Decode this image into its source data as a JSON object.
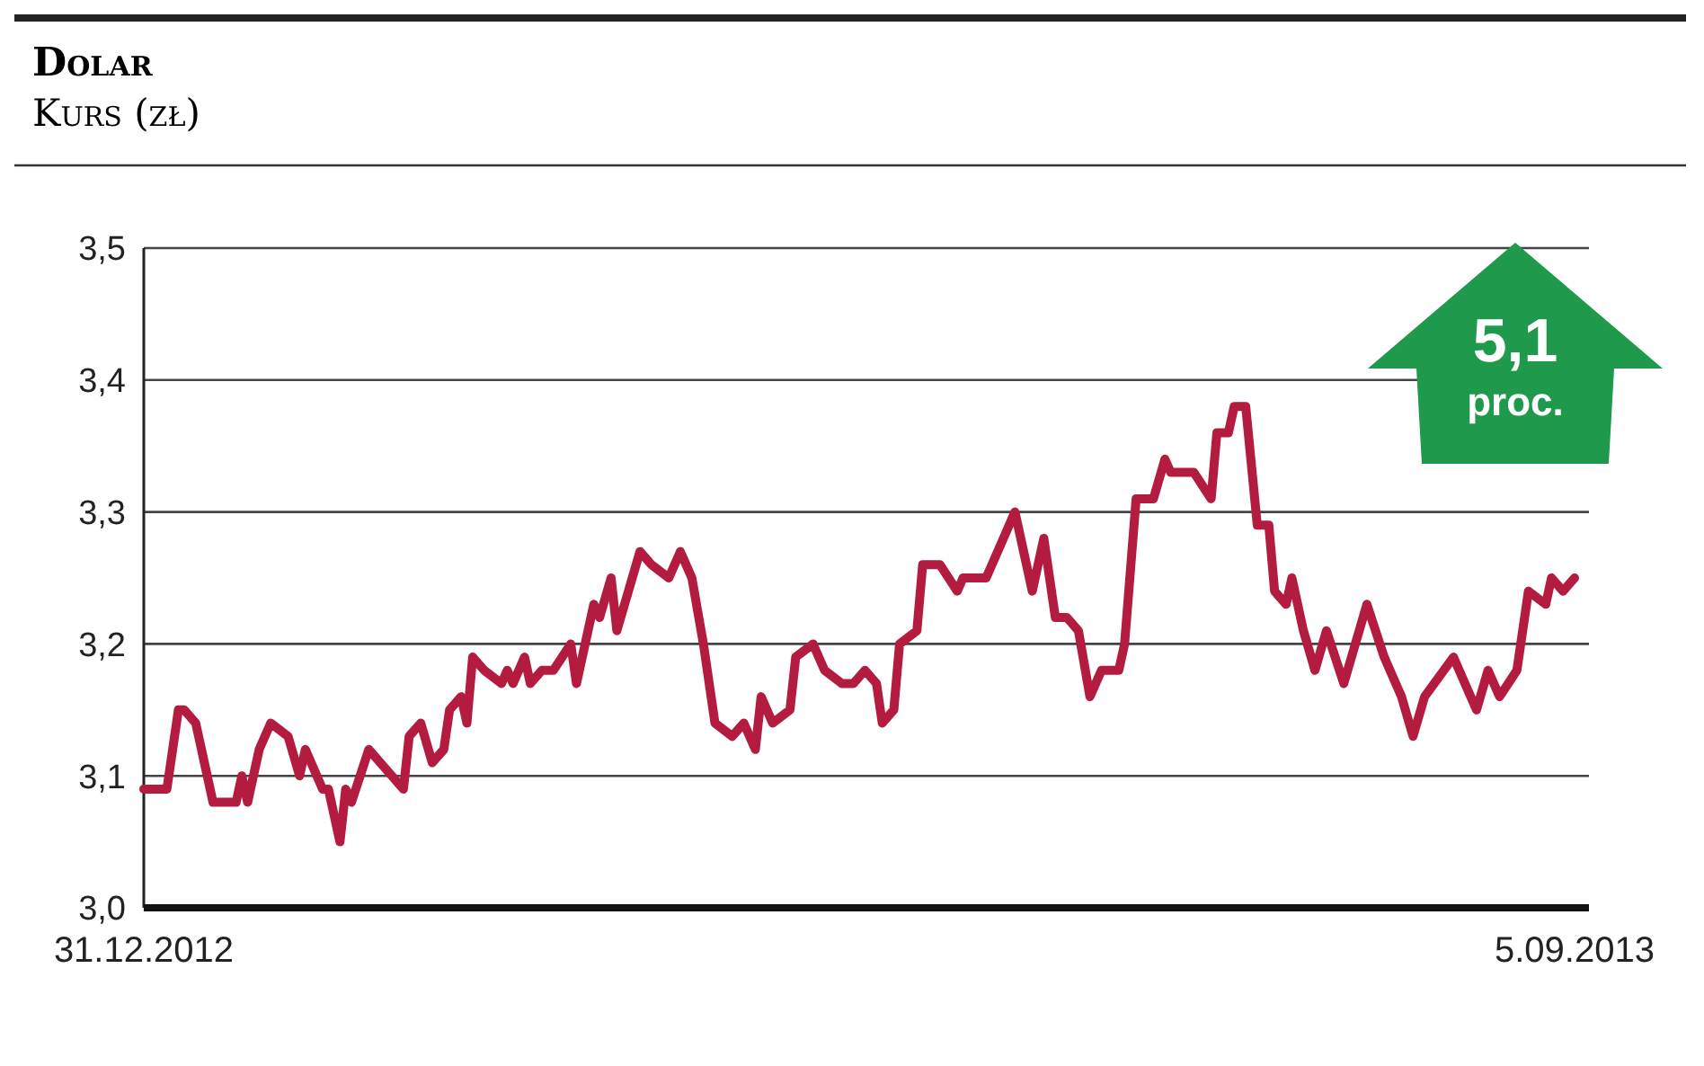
{
  "chart_data": {
    "type": "line",
    "title": "Dolar",
    "subtitle": "Kurs (zł)",
    "annotations": [
      "5,1 proc."
    ],
    "xlim": [
      "2012-12-31",
      "2013-09-05"
    ],
    "xticks": [
      {
        "value": "2012-12-31",
        "label": "31.12.2012"
      },
      {
        "value": "2013-09-05",
        "label": "5.09.2013"
      }
    ],
    "ylim": [
      3.0,
      3.5
    ],
    "yticks": [
      {
        "value": 3.0,
        "label": "3,0"
      },
      {
        "value": 3.1,
        "label": "3,1"
      },
      {
        "value": 3.2,
        "label": "3,2"
      },
      {
        "value": 3.3,
        "label": "3,3"
      },
      {
        "value": 3.4,
        "label": "3,4"
      },
      {
        "value": 3.5,
        "label": "3,5"
      }
    ],
    "grid": "y",
    "line_style": "solid",
    "series": [
      {
        "color": "#b31b3f",
        "x": [
          "2012-12-31",
          "2013-01-02",
          "2013-01-04",
          "2013-01-06",
          "2013-01-07",
          "2013-01-09",
          "2013-01-12",
          "2013-01-13",
          "2013-01-16",
          "2013-01-17",
          "2013-01-18",
          "2013-01-20",
          "2013-01-22",
          "2013-01-25",
          "2013-01-27",
          "2013-01-28",
          "2013-01-31",
          "2013-02-01",
          "2013-02-03",
          "2013-02-04",
          "2013-02-05",
          "2013-02-08",
          "2013-02-12",
          "2013-02-14",
          "2013-02-15",
          "2013-02-17",
          "2013-02-19",
          "2013-02-21",
          "2013-02-22",
          "2013-02-24",
          "2013-02-25",
          "2013-02-26",
          "2013-02-28",
          "2013-03-03",
          "2013-03-04",
          "2013-03-05",
          "2013-03-07",
          "2013-03-08",
          "2013-03-10",
          "2013-03-12",
          "2013-03-15",
          "2013-03-16",
          "2013-03-19",
          "2013-03-20",
          "2013-03-22",
          "2013-03-23",
          "2013-03-27",
          "2013-03-29",
          "2013-04-01",
          "2013-04-03",
          "2013-04-05",
          "2013-04-07",
          "2013-04-09",
          "2013-04-12",
          "2013-04-14",
          "2013-04-16",
          "2013-04-17",
          "2013-04-19",
          "2013-04-22",
          "2013-04-23",
          "2013-04-26",
          "2013-04-28",
          "2013-05-01",
          "2013-05-03",
          "2013-05-05",
          "2013-05-07",
          "2013-05-08",
          "2013-05-10",
          "2013-05-11",
          "2013-05-14",
          "2013-05-15",
          "2013-05-18",
          "2013-05-21",
          "2013-05-22",
          "2013-05-26",
          "2013-05-29",
          "2013-05-31",
          "2013-06-03",
          "2013-06-05",
          "2013-06-07",
          "2013-06-09",
          "2013-06-11",
          "2013-06-13",
          "2013-06-15",
          "2013-06-18",
          "2013-06-19",
          "2013-06-21",
          "2013-06-24",
          "2013-06-26",
          "2013-06-27",
          "2013-06-28",
          "2013-07-01",
          "2013-07-04",
          "2013-07-05",
          "2013-07-07",
          "2013-07-08",
          "2013-07-10",
          "2013-07-12",
          "2013-07-14",
          "2013-07-15",
          "2013-07-17",
          "2013-07-18",
          "2013-07-20",
          "2013-07-22",
          "2013-07-24",
          "2013-07-27",
          "2013-07-31",
          "2013-08-03",
          "2013-08-06",
          "2013-08-08",
          "2013-08-10",
          "2013-08-15",
          "2013-08-16",
          "2013-08-19",
          "2013-08-21",
          "2013-08-23",
          "2013-08-26",
          "2013-08-28",
          "2013-08-31",
          "2013-09-01",
          "2013-09-03",
          "2013-09-05"
        ],
        "values": [
          3.09,
          3.09,
          3.09,
          3.15,
          3.15,
          3.14,
          3.08,
          3.08,
          3.08,
          3.1,
          3.08,
          3.12,
          3.14,
          3.13,
          3.1,
          3.12,
          3.09,
          3.09,
          3.05,
          3.09,
          3.08,
          3.12,
          3.1,
          3.09,
          3.13,
          3.14,
          3.11,
          3.12,
          3.15,
          3.16,
          3.14,
          3.19,
          3.18,
          3.17,
          3.18,
          3.17,
          3.19,
          3.17,
          3.18,
          3.18,
          3.2,
          3.17,
          3.23,
          3.22,
          3.25,
          3.21,
          3.27,
          3.26,
          3.25,
          3.27,
          3.25,
          3.2,
          3.14,
          3.13,
          3.14,
          3.12,
          3.16,
          3.14,
          3.15,
          3.19,
          3.2,
          3.18,
          3.17,
          3.17,
          3.18,
          3.17,
          3.14,
          3.15,
          3.2,
          3.21,
          3.26,
          3.26,
          3.24,
          3.25,
          3.25,
          3.28,
          3.3,
          3.24,
          3.28,
          3.22,
          3.22,
          3.21,
          3.16,
          3.18,
          3.18,
          3.2,
          3.31,
          3.31,
          3.34,
          3.33,
          3.33,
          3.33,
          3.31,
          3.36,
          3.36,
          3.38,
          3.38,
          3.29,
          3.29,
          3.24,
          3.23,
          3.25,
          3.21,
          3.18,
          3.21,
          3.17,
          3.23,
          3.19,
          3.16,
          3.13,
          3.16,
          3.19,
          3.18,
          3.15,
          3.18,
          3.16,
          3.18,
          3.24,
          3.23,
          3.25,
          3.24,
          3.25
        ]
      }
    ]
  }
}
